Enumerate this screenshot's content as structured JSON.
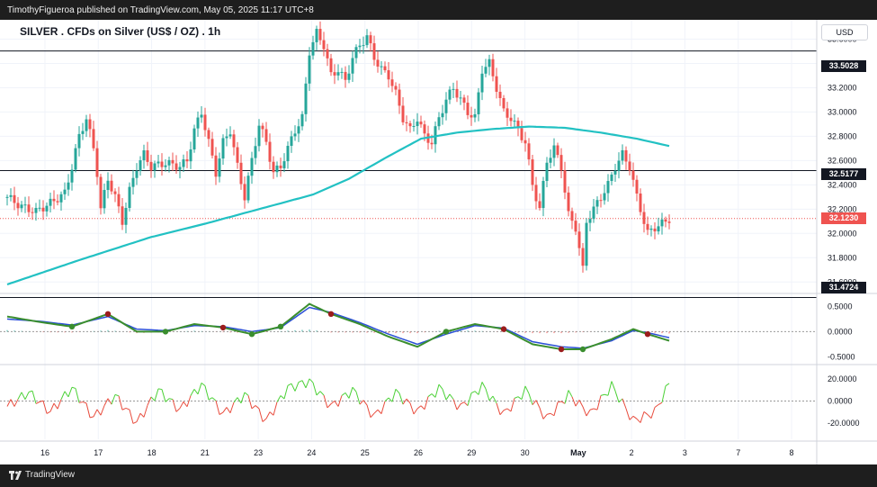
{
  "header": {
    "published_line": "TimothyFigueroa published on TradingView.com, May 05, 2025 11:17 UTC+8"
  },
  "footer": {
    "brand": "TradingView"
  },
  "currency_button": "USD",
  "chart_title": "SILVER . CFDs on Silver (US$ / OZ) . 1h",
  "price_labels": {
    "line_high": "33.5028",
    "line_mid": "32.5177",
    "current": "32.1230",
    "line_low": "31.4724"
  },
  "colors": {
    "up": "#26a69a",
    "down": "#ef5350",
    "ma": "#22c1c3",
    "macd_fast": "#3a8e2e",
    "macd_slow": "#2a4fd6",
    "macd_red": "#9b1c1c",
    "rsi_up": "#4cd137",
    "rsi_down": "#e84c3d"
  },
  "chart_data": [
    {
      "type": "candlestick",
      "title": "SILVER . CFDs on Silver (US$ / OZ) . 1h",
      "x_tick_labels": [
        "16",
        "17",
        "18",
        "21",
        "23",
        "24",
        "25",
        "26",
        "29",
        "30",
        "May",
        "2",
        "3",
        "7",
        "8"
      ],
      "y_tick_labels": [
        "31.6000",
        "31.8000",
        "32.0000",
        "32.2000",
        "32.4000",
        "32.6000",
        "32.8000",
        "33.0000",
        "33.2000",
        "33.4000",
        "33.6000"
      ],
      "ylim": [
        31.55,
        33.7
      ],
      "horizontal_lines": [
        33.5028,
        32.5177,
        31.4724
      ],
      "last_price": 32.123,
      "close_path": [
        [
          0,
          32.3
        ],
        [
          4,
          32.22
        ],
        [
          8,
          32.18
        ],
        [
          12,
          32.25
        ],
        [
          16,
          32.33
        ],
        [
          18,
          32.55
        ],
        [
          20,
          32.8
        ],
        [
          22,
          32.95
        ],
        [
          24,
          32.7
        ],
        [
          25,
          32.5
        ],
        [
          26,
          32.2
        ],
        [
          28,
          32.45
        ],
        [
          30,
          32.3
        ],
        [
          32,
          32.1
        ],
        [
          34,
          32.35
        ],
        [
          36,
          32.55
        ],
        [
          38,
          32.65
        ],
        [
          40,
          32.55
        ],
        [
          44,
          32.58
        ],
        [
          48,
          32.55
        ],
        [
          50,
          32.6
        ],
        [
          52,
          32.85
        ],
        [
          54,
          33.0
        ],
        [
          56,
          32.75
        ],
        [
          58,
          32.5
        ],
        [
          60,
          32.75
        ],
        [
          62,
          32.85
        ],
        [
          64,
          32.55
        ],
        [
          66,
          32.3
        ],
        [
          68,
          32.6
        ],
        [
          70,
          32.9
        ],
        [
          72,
          32.75
        ],
        [
          74,
          32.5
        ],
        [
          76,
          32.55
        ],
        [
          78,
          32.7
        ],
        [
          80,
          32.85
        ],
        [
          82,
          32.95
        ],
        [
          84,
          33.5
        ],
        [
          86,
          33.65
        ],
        [
          88,
          33.55
        ],
        [
          90,
          33.3
        ],
        [
          92,
          33.35
        ],
        [
          94,
          33.25
        ],
        [
          96,
          33.45
        ],
        [
          98,
          33.55
        ],
        [
          100,
          33.62
        ],
        [
          102,
          33.45
        ],
        [
          104,
          33.35
        ],
        [
          106,
          33.3
        ],
        [
          108,
          33.15
        ],
        [
          110,
          32.95
        ],
        [
          112,
          32.85
        ],
        [
          114,
          32.95
        ],
        [
          116,
          32.8
        ],
        [
          118,
          32.75
        ],
        [
          120,
          32.95
        ],
        [
          122,
          33.1
        ],
        [
          124,
          33.2
        ],
        [
          126,
          33.1
        ],
        [
          128,
          33.0
        ],
        [
          130,
          32.95
        ],
        [
          132,
          33.35
        ],
        [
          134,
          33.4
        ],
        [
          136,
          33.2
        ],
        [
          138,
          33.0
        ],
        [
          140,
          32.95
        ],
        [
          142,
          32.85
        ],
        [
          144,
          32.75
        ],
        [
          146,
          32.4
        ],
        [
          148,
          32.2
        ],
        [
          150,
          32.6
        ],
        [
          152,
          32.7
        ],
        [
          154,
          32.55
        ],
        [
          156,
          32.15
        ],
        [
          158,
          32.05
        ],
        [
          160,
          31.7
        ],
        [
          161,
          32.1
        ],
        [
          163,
          32.2
        ],
        [
          165,
          32.3
        ],
        [
          167,
          32.4
        ],
        [
          169,
          32.55
        ],
        [
          171,
          32.65
        ],
        [
          173,
          32.55
        ],
        [
          175,
          32.3
        ],
        [
          177,
          32.1
        ],
        [
          178,
          32.0
        ],
        [
          180,
          32.05
        ],
        [
          182,
          32.08
        ],
        [
          184,
          32.12
        ]
      ],
      "ma_path": [
        [
          0,
          31.58
        ],
        [
          20,
          31.78
        ],
        [
          40,
          31.97
        ],
        [
          55,
          32.08
        ],
        [
          70,
          32.2
        ],
        [
          85,
          32.32
        ],
        [
          95,
          32.45
        ],
        [
          105,
          32.62
        ],
        [
          115,
          32.78
        ],
        [
          125,
          32.83
        ],
        [
          135,
          32.86
        ],
        [
          145,
          32.88
        ],
        [
          155,
          32.87
        ],
        [
          165,
          32.83
        ],
        [
          175,
          32.78
        ],
        [
          184,
          32.72
        ]
      ]
    },
    {
      "type": "line",
      "title": "",
      "y_tick_labels": [
        "0.5000",
        "0.0000",
        "-0.5000"
      ],
      "ylim": [
        -0.6,
        0.65
      ],
      "series": [
        {
          "values": [
            [
              0,
              0.3
            ],
            [
              10,
              0.18
            ],
            [
              18,
              0.1
            ],
            [
              28,
              0.35
            ],
            [
              36,
              0.0
            ],
            [
              44,
              0.0
            ],
            [
              52,
              0.15
            ],
            [
              60,
              0.08
            ],
            [
              68,
              -0.05
            ],
            [
              76,
              0.1
            ],
            [
              84,
              0.55
            ],
            [
              90,
              0.35
            ],
            [
              98,
              0.15
            ],
            [
              106,
              -0.1
            ],
            [
              114,
              -0.3
            ],
            [
              122,
              0.0
            ],
            [
              130,
              0.15
            ],
            [
              138,
              0.05
            ],
            [
              146,
              -0.25
            ],
            [
              154,
              -0.35
            ],
            [
              160,
              -0.35
            ],
            [
              168,
              -0.15
            ],
            [
              174,
              0.05
            ],
            [
              178,
              -0.05
            ],
            [
              184,
              -0.18
            ]
          ]
        },
        {
          "values": [
            [
              0,
              0.25
            ],
            [
              10,
              0.2
            ],
            [
              18,
              0.13
            ],
            [
              28,
              0.3
            ],
            [
              36,
              0.05
            ],
            [
              44,
              0.02
            ],
            [
              52,
              0.12
            ],
            [
              60,
              0.1
            ],
            [
              68,
              0.0
            ],
            [
              76,
              0.08
            ],
            [
              84,
              0.48
            ],
            [
              90,
              0.38
            ],
            [
              98,
              0.18
            ],
            [
              106,
              -0.05
            ],
            [
              114,
              -0.25
            ],
            [
              122,
              -0.05
            ],
            [
              130,
              0.12
            ],
            [
              138,
              0.07
            ],
            [
              146,
              -0.2
            ],
            [
              154,
              -0.3
            ],
            [
              160,
              -0.33
            ],
            [
              168,
              -0.18
            ],
            [
              174,
              0.02
            ],
            [
              178,
              -0.02
            ],
            [
              184,
              -0.12
            ]
          ]
        }
      ]
    },
    {
      "type": "line",
      "title": "",
      "y_tick_labels": [
        "20.0000",
        "0.0000",
        "-20.0000"
      ],
      "ylim": [
        -35,
        30
      ],
      "series": [
        {
          "values": [
            [
              0,
              -5
            ],
            [
              6,
              8
            ],
            [
              12,
              -10
            ],
            [
              18,
              12
            ],
            [
              24,
              -15
            ],
            [
              30,
              5
            ],
            [
              36,
              -20
            ],
            [
              42,
              10
            ],
            [
              48,
              -8
            ],
            [
              54,
              15
            ],
            [
              60,
              -12
            ],
            [
              66,
              6
            ],
            [
              72,
              -18
            ],
            [
              78,
              12
            ],
            [
              84,
              18
            ],
            [
              90,
              -5
            ],
            [
              96,
              10
            ],
            [
              102,
              -14
            ],
            [
              108,
              8
            ],
            [
              114,
              -10
            ],
            [
              120,
              12
            ],
            [
              126,
              -6
            ],
            [
              132,
              14
            ],
            [
              138,
              -12
            ],
            [
              144,
              10
            ],
            [
              150,
              -16
            ],
            [
              156,
              6
            ],
            [
              162,
              -12
            ],
            [
              168,
              14
            ],
            [
              174,
              -18
            ],
            [
              180,
              -10
            ],
            [
              184,
              16
            ]
          ]
        }
      ]
    }
  ]
}
